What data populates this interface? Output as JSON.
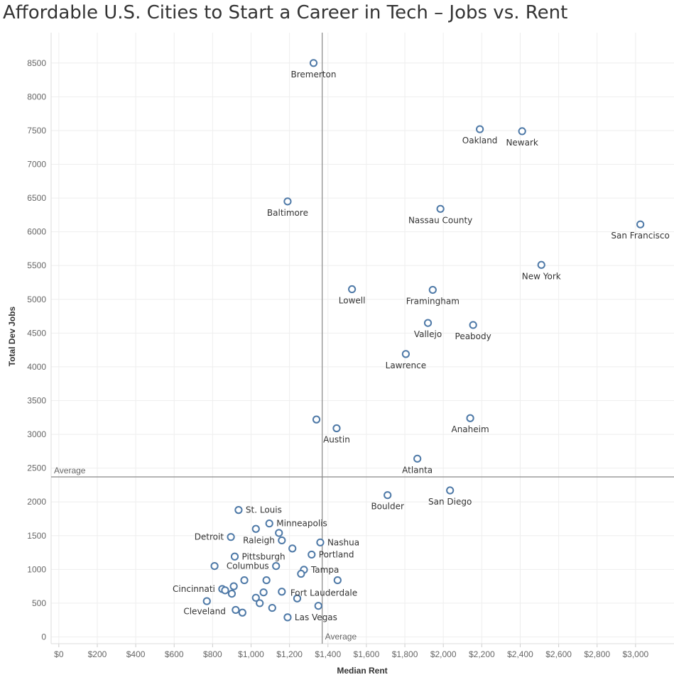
{
  "chart_data": {
    "type": "scatter",
    "title": "Affordable U.S. Cities to Start a Career in Tech – Jobs vs. Rent",
    "xlabel": "Median Rent",
    "ylabel": "Total Dev Jobs",
    "xlim": [
      -40,
      3200
    ],
    "ylim": [
      -100,
      8950
    ],
    "x_ticks": [
      0,
      200,
      400,
      600,
      800,
      1000,
      1200,
      1400,
      1600,
      1800,
      2000,
      2200,
      2400,
      2600,
      2800,
      3000
    ],
    "x_tick_labels": [
      "$0",
      "$200",
      "$400",
      "$600",
      "$800",
      "$1,000",
      "$1,200",
      "$1,400",
      "$1,600",
      "$1,800",
      "$2,000",
      "$2,200",
      "$2,400",
      "$2,600",
      "$2,800",
      "$3,000"
    ],
    "y_ticks": [
      0,
      500,
      1000,
      1500,
      2000,
      2500,
      3000,
      3500,
      4000,
      4500,
      5000,
      5500,
      6000,
      6500,
      7000,
      7500,
      8000,
      8500
    ],
    "y_tick_labels": [
      "0",
      "500",
      "1000",
      "1500",
      "2000",
      "2500",
      "3000",
      "3500",
      "4000",
      "4500",
      "5000",
      "5500",
      "6000",
      "6500",
      "7000",
      "7500",
      "8000",
      "8500"
    ],
    "grid": true,
    "marker_color": "#4e79a7",
    "reference_lines": [
      {
        "axis": "y",
        "value": 2370,
        "label": "Average"
      },
      {
        "axis": "x",
        "value": 1370,
        "label": "Average"
      }
    ],
    "points": [
      {
        "x": 1325,
        "y": 8500,
        "label": "Bremerton",
        "pos": "below"
      },
      {
        "x": 2190,
        "y": 7520,
        "label": "Oakland",
        "pos": "below"
      },
      {
        "x": 2410,
        "y": 7490,
        "label": "Newark",
        "pos": "below"
      },
      {
        "x": 1190,
        "y": 6450,
        "label": "Baltimore",
        "pos": "below"
      },
      {
        "x": 1985,
        "y": 6340,
        "label": "Nassau County",
        "pos": "below"
      },
      {
        "x": 3025,
        "y": 6110,
        "label": "San Francisco",
        "pos": "below"
      },
      {
        "x": 2510,
        "y": 5510,
        "label": "New York",
        "pos": "below"
      },
      {
        "x": 1525,
        "y": 5150,
        "label": "Lowell",
        "pos": "below"
      },
      {
        "x": 1945,
        "y": 5140,
        "label": "Framingham",
        "pos": "below"
      },
      {
        "x": 1920,
        "y": 4650,
        "label": "Vallejo",
        "pos": "below"
      },
      {
        "x": 2155,
        "y": 4620,
        "label": "Peabody",
        "pos": "below"
      },
      {
        "x": 1805,
        "y": 4190,
        "label": "Lawrence",
        "pos": "below"
      },
      {
        "x": 1340,
        "y": 3220,
        "label": "",
        "pos": "none"
      },
      {
        "x": 1445,
        "y": 3090,
        "label": "Austin",
        "pos": "below"
      },
      {
        "x": 2140,
        "y": 3240,
        "label": "Anaheim",
        "pos": "below"
      },
      {
        "x": 1865,
        "y": 2640,
        "label": "Atlanta",
        "pos": "below"
      },
      {
        "x": 1710,
        "y": 2100,
        "label": "Boulder",
        "pos": "below"
      },
      {
        "x": 2035,
        "y": 2170,
        "label": "San Diego",
        "pos": "below"
      },
      {
        "x": 935,
        "y": 1880,
        "label": "St. Louis",
        "pos": "right"
      },
      {
        "x": 1095,
        "y": 1680,
        "label": "Minneapolis",
        "pos": "right"
      },
      {
        "x": 1025,
        "y": 1600,
        "label": "",
        "pos": "none"
      },
      {
        "x": 1145,
        "y": 1540,
        "label": "",
        "pos": "none"
      },
      {
        "x": 895,
        "y": 1480,
        "label": "Detroit",
        "pos": "left"
      },
      {
        "x": 1160,
        "y": 1430,
        "label": "Raleigh",
        "pos": "left"
      },
      {
        "x": 1360,
        "y": 1400,
        "label": "Nashua",
        "pos": "right"
      },
      {
        "x": 1215,
        "y": 1310,
        "label": "",
        "pos": "none"
      },
      {
        "x": 1315,
        "y": 1220,
        "label": "Portland",
        "pos": "right"
      },
      {
        "x": 915,
        "y": 1190,
        "label": "Pittsburgh",
        "pos": "right"
      },
      {
        "x": 810,
        "y": 1050,
        "label": "",
        "pos": "none"
      },
      {
        "x": 1130,
        "y": 1050,
        "label": "Columbus",
        "pos": "left"
      },
      {
        "x": 1275,
        "y": 995,
        "label": "Tampa",
        "pos": "right"
      },
      {
        "x": 1260,
        "y": 935,
        "label": "",
        "pos": "none"
      },
      {
        "x": 965,
        "y": 840,
        "label": "",
        "pos": "none"
      },
      {
        "x": 1080,
        "y": 840,
        "label": "",
        "pos": "none"
      },
      {
        "x": 1450,
        "y": 840,
        "label": "",
        "pos": "none"
      },
      {
        "x": 910,
        "y": 750,
        "label": "",
        "pos": "none"
      },
      {
        "x": 850,
        "y": 710,
        "label": "Cincinnati",
        "pos": "left"
      },
      {
        "x": 865,
        "y": 690,
        "label": "",
        "pos": "none"
      },
      {
        "x": 900,
        "y": 640,
        "label": "",
        "pos": "none"
      },
      {
        "x": 1065,
        "y": 660,
        "label": "",
        "pos": "none"
      },
      {
        "x": 1160,
        "y": 670,
        "label": "Fort Lauderdale",
        "pos": "below-right"
      },
      {
        "x": 1025,
        "y": 580,
        "label": "",
        "pos": "none"
      },
      {
        "x": 1240,
        "y": 570,
        "label": "",
        "pos": "none"
      },
      {
        "x": 770,
        "y": 530,
        "label": "",
        "pos": "none"
      },
      {
        "x": 1045,
        "y": 500,
        "label": "",
        "pos": "none"
      },
      {
        "x": 1110,
        "y": 430,
        "label": "",
        "pos": "none"
      },
      {
        "x": 1350,
        "y": 460,
        "label": "",
        "pos": "none"
      },
      {
        "x": 920,
        "y": 400,
        "label": "Cleveland",
        "pos": "left-below"
      },
      {
        "x": 955,
        "y": 360,
        "label": "",
        "pos": "none"
      },
      {
        "x": 1190,
        "y": 290,
        "label": "Las Vegas",
        "pos": "right"
      }
    ]
  }
}
